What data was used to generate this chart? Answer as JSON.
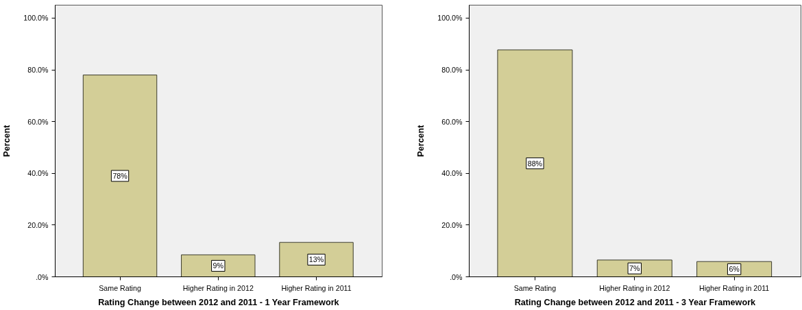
{
  "chart_data": [
    {
      "type": "bar",
      "xlabel": "Rating Change between 2012 and 2011 - 1 Year Framework",
      "ylabel": "Percent",
      "categories": [
        "Same Rating",
        "Higher Rating in 2012",
        "Higher Rating in 2011"
      ],
      "values": [
        78.0,
        8.5,
        13.3
      ],
      "value_labels": [
        "78%",
        "9%",
        "13%"
      ],
      "color": "#d3ce97",
      "ylim": [
        0,
        105
      ],
      "yticks": [
        {
          "value": 0,
          "label": ".0%"
        },
        {
          "value": 20,
          "label": "20.0%"
        },
        {
          "value": 40,
          "label": "40.0%"
        },
        {
          "value": 60,
          "label": "60.0%"
        },
        {
          "value": 80,
          "label": "80.0%"
        },
        {
          "value": 100,
          "label": "100.0%"
        }
      ]
    },
    {
      "type": "bar",
      "xlabel": "Rating Change between 2012 and 2011 - 3 Year Framework",
      "ylabel": "Percent",
      "categories": [
        "Same Rating",
        "Higher Rating in 2012",
        "Higher Rating in 2011"
      ],
      "values": [
        87.7,
        6.5,
        5.9
      ],
      "value_labels": [
        "88%",
        "7%",
        "6%"
      ],
      "color": "#d3ce97",
      "ylim": [
        0,
        105
      ],
      "yticks": [
        {
          "value": 0,
          "label": ".0%"
        },
        {
          "value": 20,
          "label": "20.0%"
        },
        {
          "value": 40,
          "label": "40.0%"
        },
        {
          "value": 60,
          "label": "60.0%"
        },
        {
          "value": 80,
          "label": "80.0%"
        },
        {
          "value": 100,
          "label": "100.0%"
        }
      ]
    }
  ]
}
